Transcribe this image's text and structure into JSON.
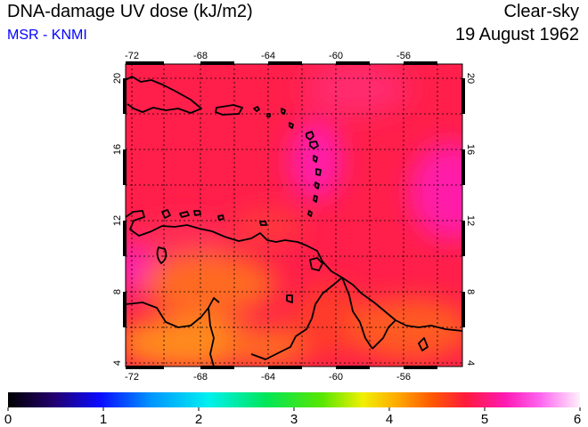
{
  "header": {
    "title": "DNA-damage UV dose (kJ/m2)",
    "source": "MSR - KNMI",
    "condition": "Clear-sky",
    "date": "19 August 1962"
  },
  "map": {
    "lon_range": [
      -73,
      -53
    ],
    "lat_range": [
      3.5,
      20.5
    ],
    "lon_ticks": [
      "-72",
      "-68",
      "-64",
      "-60",
      "-56"
    ],
    "lat_ticks": [
      "4",
      "8",
      "12",
      "16",
      "20"
    ],
    "grid": "dotted",
    "region": "Caribbean Sea and northern South America"
  },
  "colorbar": {
    "min": 0,
    "max": 6,
    "tick_labels": [
      "0",
      "1",
      "2",
      "3",
      "4",
      "5",
      "6"
    ]
  },
  "colors": {
    "field_dominant": "#ff1f4a",
    "field_high": "#ff1aa8",
    "field_low": "#ff8a1a",
    "coast": "#000000",
    "source_text": "#0000ff"
  }
}
